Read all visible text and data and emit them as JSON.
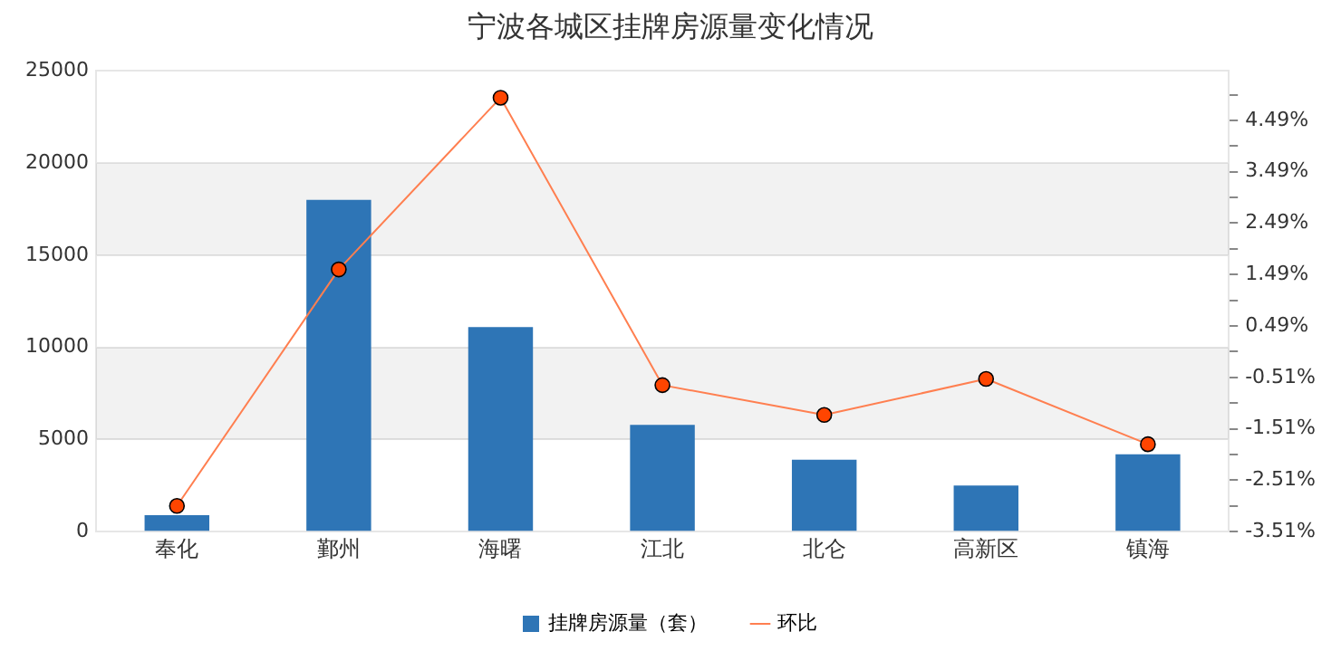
{
  "chart_data": {
    "type": "bar",
    "title": "宁波各城区挂牌房源量变化情况",
    "categories": [
      "奉化",
      "鄞州",
      "海曙",
      "江北",
      "北仑",
      "高新区",
      "镇海"
    ],
    "series": [
      {
        "name": "挂牌房源量（套）",
        "color": "#2e75b6",
        "values": [
          900,
          18000,
          11100,
          5800,
          3900,
          2500,
          4200
        ]
      },
      {
        "name": "环比",
        "type": "line",
        "axis": "y2",
        "color": "#ff7f50",
        "marker": "circle",
        "values": [
          -3.01,
          1.59,
          4.93,
          -0.66,
          -1.24,
          -0.54,
          -1.81
        ]
      }
    ],
    "ylim": [
      0,
      25000
    ],
    "yticks": [
      0,
      5000,
      10000,
      15000,
      20000,
      25000
    ],
    "y2lim": [
      -3.51,
      5.45
    ],
    "y2ticks": [
      {
        "value": -3.51,
        "label": "-3.51%"
      },
      {
        "value": -3.01,
        "label": null
      },
      {
        "value": -2.51,
        "label": "-2.51%"
      },
      {
        "value": -2.01,
        "label": null
      },
      {
        "value": -1.51,
        "label": "-1.51%"
      },
      {
        "value": -1.01,
        "label": null
      },
      {
        "value": -0.51,
        "label": "-0.51%"
      },
      {
        "value": -0.01,
        "label": null
      },
      {
        "value": 0.49,
        "label": "0.49%"
      },
      {
        "value": 0.99,
        "label": null
      },
      {
        "value": 1.49,
        "label": "1.49%"
      },
      {
        "value": 1.99,
        "label": null
      },
      {
        "value": 2.49,
        "label": "2.49%"
      },
      {
        "value": 2.99,
        "label": null
      },
      {
        "value": 3.49,
        "label": "3.49%"
      },
      {
        "value": 3.99,
        "label": null
      },
      {
        "value": 4.49,
        "label": "4.49%"
      },
      {
        "value": 4.99,
        "label": null
      }
    ],
    "grid": "y",
    "legend": "bottom"
  }
}
